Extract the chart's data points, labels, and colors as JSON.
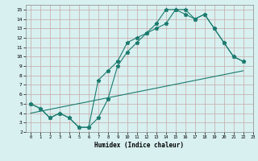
{
  "line1_x": [
    0,
    1,
    2,
    3,
    4,
    5,
    6,
    7,
    8,
    9,
    10,
    11,
    12,
    13,
    14,
    15,
    16,
    17,
    18,
    19,
    20,
    21,
    22
  ],
  "line1_y": [
    5.0,
    4.5,
    3.5,
    4.0,
    3.5,
    2.5,
    2.5,
    3.5,
    5.5,
    9.0,
    10.5,
    11.5,
    12.5,
    13.0,
    13.5,
    15.0,
    15.0,
    14.0,
    14.5,
    13.0,
    11.5,
    10.0,
    9.5
  ],
  "line2_x": [
    0,
    1,
    2,
    3,
    4,
    5,
    6,
    7,
    8,
    9,
    10,
    11,
    12,
    13,
    14,
    15,
    16,
    17,
    18,
    19,
    20,
    21,
    22
  ],
  "line2_y": [
    5.0,
    4.5,
    3.5,
    4.0,
    3.5,
    2.5,
    2.5,
    7.5,
    8.5,
    9.5,
    11.5,
    12.0,
    12.5,
    13.5,
    15.0,
    15.0,
    14.5,
    14.0,
    14.5,
    13.0,
    11.5,
    10.0,
    9.5
  ],
  "line3_x": [
    0,
    22
  ],
  "line3_y": [
    4.0,
    8.5
  ],
  "color": "#1a7a6e",
  "bg_color": "#d8f0f0",
  "grid_color": "#b8d4d4",
  "xlabel": "Humidex (Indice chaleur)",
  "xlim": [
    -0.5,
    23
  ],
  "ylim": [
    2,
    15.5
  ],
  "yticks": [
    2,
    3,
    4,
    5,
    6,
    7,
    8,
    9,
    10,
    11,
    12,
    13,
    14,
    15
  ],
  "xticks": [
    0,
    1,
    2,
    3,
    4,
    5,
    6,
    7,
    8,
    9,
    10,
    11,
    12,
    13,
    14,
    15,
    16,
    17,
    18,
    19,
    20,
    21,
    22,
    23
  ]
}
